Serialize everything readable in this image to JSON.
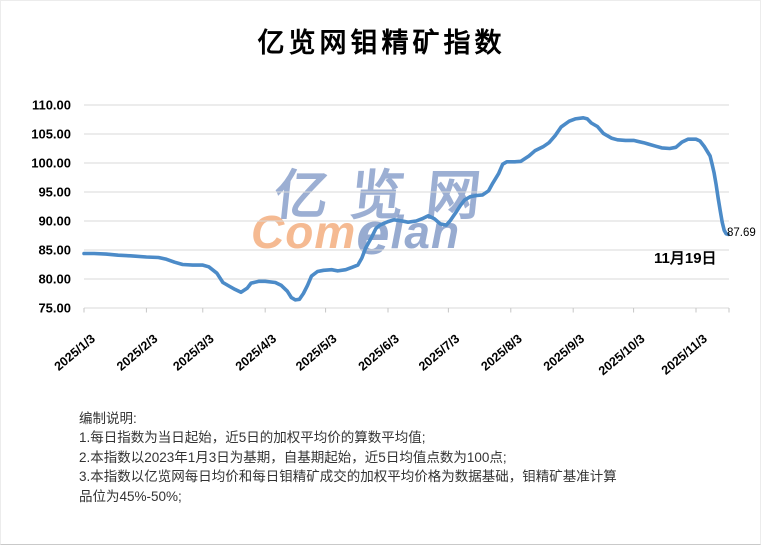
{
  "header": {
    "title": "亿览网钼精矿指数"
  },
  "watermark": {
    "cn": "亿览网",
    "en_com": "Com",
    "en_e": "e",
    "en_lan": "lan"
  },
  "chart_data": {
    "type": "line",
    "title": "亿览网钼精矿指数",
    "xlabel": "",
    "ylabel": "",
    "ylim": [
      75,
      110
    ],
    "ytick_step": 5,
    "grid": true,
    "legend": "none",
    "line_color": "#4C8BC8",
    "grid_color": "#D9D9D9",
    "axis_text_color": "#000000",
    "y_tick_labels": [
      "110.00",
      "105.00",
      "100.00",
      "95.00",
      "90.00",
      "85.00",
      "80.00",
      "75.00"
    ],
    "x_tick_labels": [
      "2025/1/3",
      "2025/2/3",
      "2025/3/3",
      "2025/4/3",
      "2025/5/3",
      "2025/6/3",
      "2025/7/3",
      "2025/8/3",
      "2025/9/3",
      "2025/10/3",
      "2025/11/3"
    ],
    "end_label": {
      "value": "87.69",
      "date_label": "11月19日"
    },
    "series": [
      {
        "points": [
          [
            "2025/1/3",
            84.4
          ],
          [
            "2025/1/8",
            84.4
          ],
          [
            "2025/1/14",
            84.3
          ],
          [
            "2025/1/20",
            84.1
          ],
          [
            "2025/1/26",
            84.0
          ],
          [
            "2025/2/3",
            83.8
          ],
          [
            "2025/2/9",
            83.7
          ],
          [
            "2025/2/13",
            83.4
          ],
          [
            "2025/2/17",
            82.9
          ],
          [
            "2025/2/21",
            82.5
          ],
          [
            "2025/2/26",
            82.4
          ],
          [
            "2025/3/3",
            82.4
          ],
          [
            "2025/3/6",
            82.1
          ],
          [
            "2025/3/10",
            81.0
          ],
          [
            "2025/3/13",
            79.4
          ],
          [
            "2025/3/16",
            78.8
          ],
          [
            "2025/3/19",
            78.2
          ],
          [
            "2025/3/22",
            77.7
          ],
          [
            "2025/3/25",
            78.4
          ],
          [
            "2025/3/27",
            79.3
          ],
          [
            "2025/3/31",
            79.6
          ],
          [
            "2025/4/3",
            79.6
          ],
          [
            "2025/4/8",
            79.4
          ],
          [
            "2025/4/11",
            78.9
          ],
          [
            "2025/4/14",
            77.9
          ],
          [
            "2025/4/16",
            76.8
          ],
          [
            "2025/4/18",
            76.4
          ],
          [
            "2025/4/20",
            76.5
          ],
          [
            "2025/4/22",
            77.5
          ],
          [
            "2025/4/24",
            78.9
          ],
          [
            "2025/4/26",
            80.5
          ],
          [
            "2025/4/29",
            81.3
          ],
          [
            "2025/5/2",
            81.5
          ],
          [
            "2025/5/6",
            81.6
          ],
          [
            "2025/5/9",
            81.4
          ],
          [
            "2025/5/13",
            81.6
          ],
          [
            "2025/5/16",
            82.0
          ],
          [
            "2025/5/19",
            82.4
          ],
          [
            "2025/5/21",
            83.6
          ],
          [
            "2025/5/23",
            85.4
          ],
          [
            "2025/5/26",
            87.3
          ],
          [
            "2025/5/28",
            88.7
          ],
          [
            "2025/5/30",
            89.3
          ],
          [
            "2025/6/3",
            89.9
          ],
          [
            "2025/6/6",
            90.2
          ],
          [
            "2025/6/10",
            90.0
          ],
          [
            "2025/6/13",
            89.8
          ],
          [
            "2025/6/17",
            90.0
          ],
          [
            "2025/6/20",
            90.4
          ],
          [
            "2025/6/23",
            90.9
          ],
          [
            "2025/6/26",
            90.4
          ],
          [
            "2025/6/29",
            89.5
          ],
          [
            "2025/7/2",
            89.3
          ],
          [
            "2025/7/4",
            90.1
          ],
          [
            "2025/7/7",
            91.6
          ],
          [
            "2025/7/9",
            92.7
          ],
          [
            "2025/7/11",
            93.6
          ],
          [
            "2025/7/14",
            94.2
          ],
          [
            "2025/7/17",
            94.4
          ],
          [
            "2025/7/20",
            94.5
          ],
          [
            "2025/7/23",
            95.2
          ],
          [
            "2025/7/25",
            96.5
          ],
          [
            "2025/7/28",
            98.2
          ],
          [
            "2025/7/30",
            99.8
          ],
          [
            "2025/8/1",
            100.2
          ],
          [
            "2025/8/5",
            100.2
          ],
          [
            "2025/8/8",
            100.3
          ],
          [
            "2025/8/12",
            101.2
          ],
          [
            "2025/8/15",
            102.1
          ],
          [
            "2025/8/19",
            102.8
          ],
          [
            "2025/8/22",
            103.5
          ],
          [
            "2025/8/25",
            104.7
          ],
          [
            "2025/8/28",
            106.2
          ],
          [
            "2025/9/1",
            107.2
          ],
          [
            "2025/9/4",
            107.6
          ],
          [
            "2025/9/8",
            107.8
          ],
          [
            "2025/9/10",
            107.6
          ],
          [
            "2025/9/12",
            106.9
          ],
          [
            "2025/9/15",
            106.3
          ],
          [
            "2025/9/18",
            105.1
          ],
          [
            "2025/9/22",
            104.3
          ],
          [
            "2025/9/25",
            104.0
          ],
          [
            "2025/9/29",
            103.9
          ],
          [
            "2025/10/3",
            103.9
          ],
          [
            "2025/10/8",
            103.5
          ],
          [
            "2025/10/10",
            103.3
          ],
          [
            "2025/10/14",
            102.9
          ],
          [
            "2025/10/17",
            102.6
          ],
          [
            "2025/10/21",
            102.5
          ],
          [
            "2025/10/24",
            102.7
          ],
          [
            "2025/10/27",
            103.6
          ],
          [
            "2025/10/30",
            104.1
          ],
          [
            "2025/11/3",
            104.1
          ],
          [
            "2025/11/5",
            103.8
          ],
          [
            "2025/11/7",
            102.9
          ],
          [
            "2025/11/10",
            101.2
          ],
          [
            "2025/11/11",
            99.8
          ],
          [
            "2025/11/12",
            98.3
          ],
          [
            "2025/11/13",
            96.3
          ],
          [
            "2025/11/14",
            94.0
          ],
          [
            "2025/11/15",
            91.8
          ],
          [
            "2025/11/16",
            89.8
          ],
          [
            "2025/11/17",
            88.4
          ],
          [
            "2025/11/18",
            87.8
          ],
          [
            "2025/11/19",
            87.69
          ]
        ]
      }
    ]
  },
  "notes": {
    "lines": [
      "编制说明:",
      "1.每日指数为当日起始，近5日的加权平均价的算数平均值;",
      "2.本指数以2023年1月3日为基期，自基期起始，近5日均值点数为100点;",
      "3.本指数以亿览网每日均价和每日钼精矿成交的加权平均价格为数据基础，钼精矿基准计算",
      "品位为45%-50%;"
    ]
  }
}
